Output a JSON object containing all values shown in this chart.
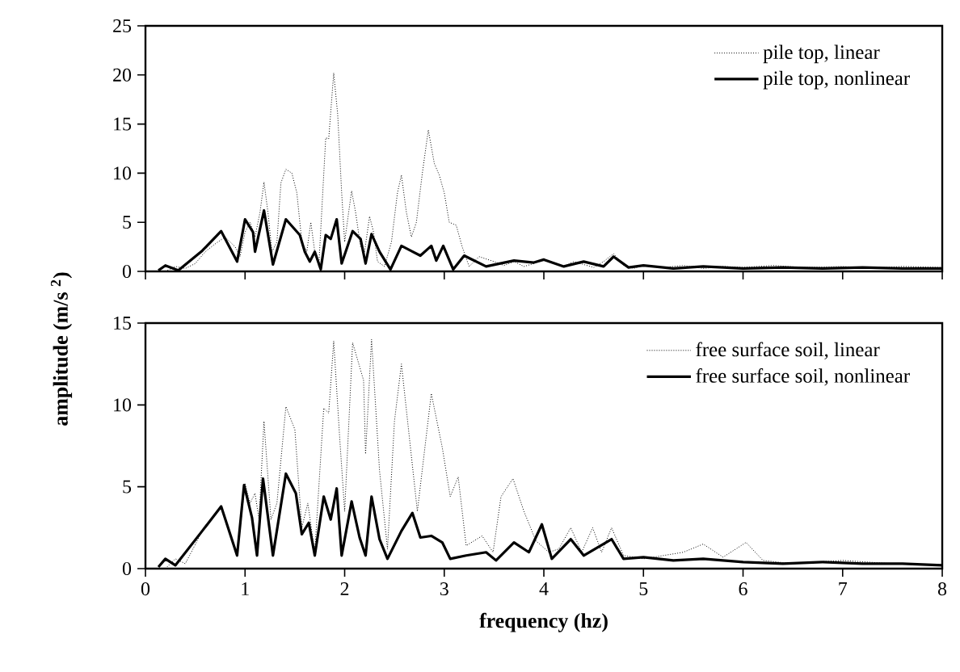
{
  "chart_data": [
    {
      "type": "line",
      "xlim": [
        0,
        8
      ],
      "xticks": [
        0,
        1,
        2,
        3,
        4,
        5,
        6,
        7,
        8
      ],
      "ylim": [
        0,
        25
      ],
      "yticks": [
        0,
        5,
        10,
        15,
        20,
        25
      ],
      "tick_labels": "y",
      "legend": "top right",
      "grid": false,
      "series": [
        {
          "name": "pile top, linear",
          "color": "#000000",
          "line_style": "dotted",
          "x": [
            0.2,
            0.3,
            0.4,
            0.5,
            0.6,
            0.7,
            0.8,
            0.9,
            0.95,
            1.0,
            1.05,
            1.1,
            1.15,
            1.19,
            1.23,
            1.27,
            1.32,
            1.36,
            1.41,
            1.47,
            1.52,
            1.57,
            1.62,
            1.66,
            1.7,
            1.74,
            1.78,
            1.81,
            1.84,
            1.89,
            1.93,
            1.97,
            2.0,
            2.04,
            2.07,
            2.11,
            2.16,
            2.2,
            2.25,
            2.29,
            2.33,
            2.4,
            2.47,
            2.53,
            2.57,
            2.62,
            2.67,
            2.72,
            2.78,
            2.84,
            2.9,
            2.95,
            3.0,
            3.05,
            3.12,
            3.18,
            3.25,
            3.35,
            3.5,
            3.6,
            3.7,
            3.8,
            3.9,
            4.0,
            4.1,
            4.2,
            4.3,
            4.4,
            4.5,
            4.6,
            4.7,
            4.8,
            4.9,
            5.0,
            5.2,
            5.4,
            5.6,
            5.8,
            6.0,
            6.3,
            6.6,
            7.0,
            7.3,
            7.6,
            8.0
          ],
          "values": [
            0,
            0.5,
            0.3,
            0.8,
            2,
            2.8,
            3.5,
            2.5,
            1.5,
            4,
            5,
            3.5,
            6,
            9.1,
            6,
            2,
            3,
            9,
            10.4,
            10,
            8,
            3,
            2,
            5,
            2,
            0.5,
            8,
            13.6,
            13.5,
            20.2,
            16,
            8,
            3,
            6,
            8.2,
            6,
            2.5,
            2,
            5.6,
            4,
            1,
            0.5,
            3,
            8,
            9.8,
            6,
            3.5,
            5,
            10,
            14.4,
            11,
            9.8,
            8,
            5,
            4.7,
            2.5,
            0.5,
            1.5,
            1,
            0.6,
            1,
            0.5,
            0.8,
            1.3,
            0.9,
            0.5,
            1,
            0.7,
            0.4,
            1,
            1.8,
            0.6,
            0.3,
            0.6,
            0.4,
            0.6,
            0.3,
            0.5,
            0.4,
            0.6,
            0.4,
            0.5,
            0.3,
            0.5,
            0.4
          ]
        },
        {
          "name": "pile top, nonlinear",
          "color": "#000000",
          "line_style": "solid",
          "x": [
            0.13,
            0.2,
            0.33,
            0.57,
            0.76,
            0.92,
            1.0,
            1.08,
            1.1,
            1.19,
            1.28,
            1.41,
            1.55,
            1.6,
            1.65,
            1.7,
            1.76,
            1.81,
            1.86,
            1.92,
            1.97,
            2.08,
            2.16,
            2.21,
            2.27,
            2.35,
            2.46,
            2.57,
            2.76,
            2.87,
            2.92,
            2.99,
            3.09,
            3.2,
            3.42,
            3.7,
            3.9,
            4.0,
            4.2,
            4.4,
            4.6,
            4.7,
            4.85,
            5.0,
            5.3,
            5.6,
            6.0,
            6.4,
            6.8,
            7.2,
            7.6,
            8.0
          ],
          "values": [
            0.1,
            0.6,
            0.1,
            2.1,
            4.1,
            1.0,
            5.3,
            4,
            2,
            6.2,
            0.7,
            5.3,
            3.7,
            2,
            1,
            2,
            0.2,
            3.7,
            3.3,
            5.3,
            0.8,
            4.1,
            3.3,
            0.8,
            3.8,
            2,
            0.2,
            2.6,
            1.6,
            2.6,
            1.1,
            2.6,
            0.2,
            1.6,
            0.5,
            1.1,
            0.9,
            1.2,
            0.5,
            1,
            0.5,
            1.5,
            0.4,
            0.6,
            0.3,
            0.5,
            0.3,
            0.4,
            0.3,
            0.4,
            0.3,
            0.3
          ]
        }
      ]
    },
    {
      "type": "line",
      "xlim": [
        0,
        8
      ],
      "xticks": [
        0,
        1,
        2,
        3,
        4,
        5,
        6,
        7,
        8
      ],
      "ylim": [
        0,
        15
      ],
      "yticks": [
        0,
        5,
        10,
        15
      ],
      "legend": "top right",
      "grid": false,
      "xlabel": "frequency (hz)",
      "ylabel": "amplitude (m/s $^{2}$)",
      "series": [
        {
          "name": "free surface soil, linear",
          "color": "#000000",
          "line_style": "dotted",
          "x": [
            0.2,
            0.3,
            0.4,
            0.57,
            0.76,
            0.92,
            1.0,
            1.05,
            1.1,
            1.14,
            1.19,
            1.26,
            1.32,
            1.41,
            1.5,
            1.57,
            1.63,
            1.7,
            1.79,
            1.84,
            1.89,
            1.95,
            2.0,
            2.08,
            2.19,
            2.21,
            2.27,
            2.35,
            2.43,
            2.5,
            2.57,
            2.65,
            2.73,
            2.87,
            2.98,
            3.06,
            3.14,
            3.22,
            3.38,
            3.49,
            3.57,
            3.69,
            3.8,
            3.92,
            4.05,
            4.15,
            4.27,
            4.38,
            4.49,
            4.58,
            4.68,
            4.8,
            5.0,
            5.2,
            5.4,
            5.6,
            5.8,
            6.03,
            6.2,
            6.5,
            7.0,
            7.5,
            8.0
          ],
          "values": [
            0,
            0.6,
            0.3,
            2.3,
            3.8,
            0.8,
            5.2,
            4,
            4.6,
            3,
            9.0,
            3,
            4,
            9.9,
            8.5,
            2.5,
            4,
            1,
            9.8,
            9.5,
            13.9,
            8,
            3.5,
            13.8,
            11.5,
            7.0,
            14,
            6,
            1.2,
            9,
            12.5,
            8,
            3.5,
            10.7,
            7.4,
            4.4,
            5.6,
            1.4,
            2,
            1,
            4.4,
            5.5,
            3.5,
            1.7,
            1,
            1.2,
            2.5,
            1,
            2.5,
            1,
            2.5,
            0.8,
            0.6,
            0.8,
            1,
            1.5,
            0.7,
            1.6,
            0.5,
            0.3,
            0.5,
            0.3,
            0.2
          ]
        },
        {
          "name": "free surface soil, nonlinear",
          "color": "#000000",
          "line_style": "solid",
          "x": [
            0.13,
            0.2,
            0.3,
            0.57,
            0.76,
            0.92,
            0.99,
            1.07,
            1.12,
            1.18,
            1.28,
            1.41,
            1.51,
            1.57,
            1.64,
            1.7,
            1.79,
            1.86,
            1.92,
            1.97,
            2.07,
            2.15,
            2.21,
            2.27,
            2.35,
            2.43,
            2.57,
            2.68,
            2.76,
            2.87,
            2.98,
            3.06,
            3.22,
            3.42,
            3.52,
            3.7,
            3.85,
            3.98,
            4.08,
            4.27,
            4.4,
            4.68,
            4.8,
            5.0,
            5.3,
            5.6,
            6.0,
            6.4,
            6.8,
            7.2,
            7.6,
            8.0
          ],
          "values": [
            0.1,
            0.6,
            0.2,
            2.3,
            3.8,
            0.8,
            5.1,
            3.1,
            0.8,
            5.5,
            0.8,
            5.8,
            4.6,
            2.1,
            2.8,
            0.8,
            4.4,
            3,
            4.9,
            0.8,
            4.1,
            1.9,
            0.8,
            4.4,
            1.8,
            0.6,
            2.3,
            3.4,
            1.9,
            2,
            1.6,
            0.6,
            0.8,
            1,
            0.5,
            1.6,
            1,
            2.7,
            0.6,
            1.8,
            0.8,
            1.8,
            0.6,
            0.7,
            0.5,
            0.6,
            0.4,
            0.3,
            0.4,
            0.3,
            0.3,
            0.2
          ]
        }
      ]
    }
  ]
}
